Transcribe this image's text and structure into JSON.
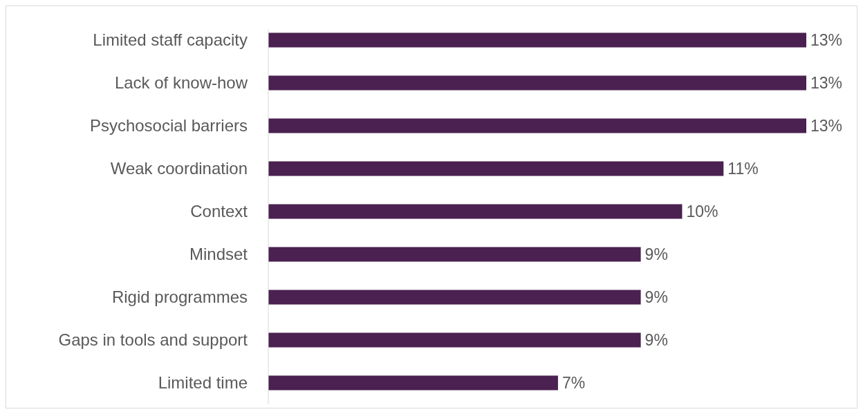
{
  "chart_data": {
    "type": "bar",
    "orientation": "horizontal",
    "categories": [
      "Limited staff capacity",
      "Lack of know-how",
      "Psychosocial barriers",
      "Weak coordination",
      "Context",
      "Mindset",
      "Rigid programmes",
      "Gaps in tools and support",
      "Limited time"
    ],
    "values": [
      13,
      13,
      13,
      11,
      10,
      9,
      9,
      9,
      7
    ],
    "value_labels": [
      "13%",
      "13%",
      "13%",
      "11%",
      "10%",
      "9%",
      "9%",
      "9%",
      "7%"
    ],
    "color": "#4a2150"
  }
}
